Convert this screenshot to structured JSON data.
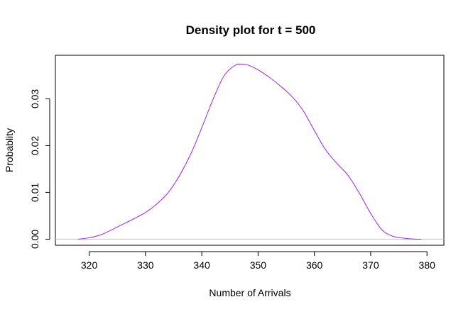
{
  "chart_data": {
    "type": "line",
    "title": "Density plot for t = 500",
    "xlabel": "Number of Arrivals",
    "ylabel": "Probablity",
    "xlim": [
      314,
      383
    ],
    "ylim": [
      -0.0013,
      0.0393
    ],
    "x_ticks": [
      320,
      330,
      340,
      350,
      360,
      370,
      380
    ],
    "x_tick_labels": [
      "320",
      "330",
      "340",
      "350",
      "360",
      "370",
      "380"
    ],
    "y_ticks": [
      0.0,
      0.01,
      0.02,
      0.03
    ],
    "y_tick_labels": [
      "0.00",
      "0.01",
      "0.02",
      "0.03"
    ],
    "grid": false,
    "baseline": {
      "y": 0,
      "color": "#c0c0c0"
    },
    "series": [
      {
        "color": "#a020f0",
        "x": [
          318,
          320,
          322,
          324,
          326,
          328,
          330,
          332,
          334,
          336,
          338,
          340,
          342,
          344,
          346,
          347,
          348,
          350,
          352,
          354,
          356,
          358,
          360,
          362,
          364,
          366,
          368,
          370,
          372,
          374,
          376,
          378,
          379
        ],
        "y": [
          0.0,
          0.0003,
          0.0009,
          0.002,
          0.0032,
          0.0044,
          0.0057,
          0.0075,
          0.0099,
          0.0135,
          0.0181,
          0.0238,
          0.0299,
          0.035,
          0.0372,
          0.0374,
          0.0373,
          0.0362,
          0.0346,
          0.0327,
          0.0305,
          0.0275,
          0.0232,
          0.0191,
          0.0162,
          0.0136,
          0.0098,
          0.0055,
          0.002,
          0.0006,
          0.0002,
          0.0,
          0.0
        ]
      }
    ]
  }
}
